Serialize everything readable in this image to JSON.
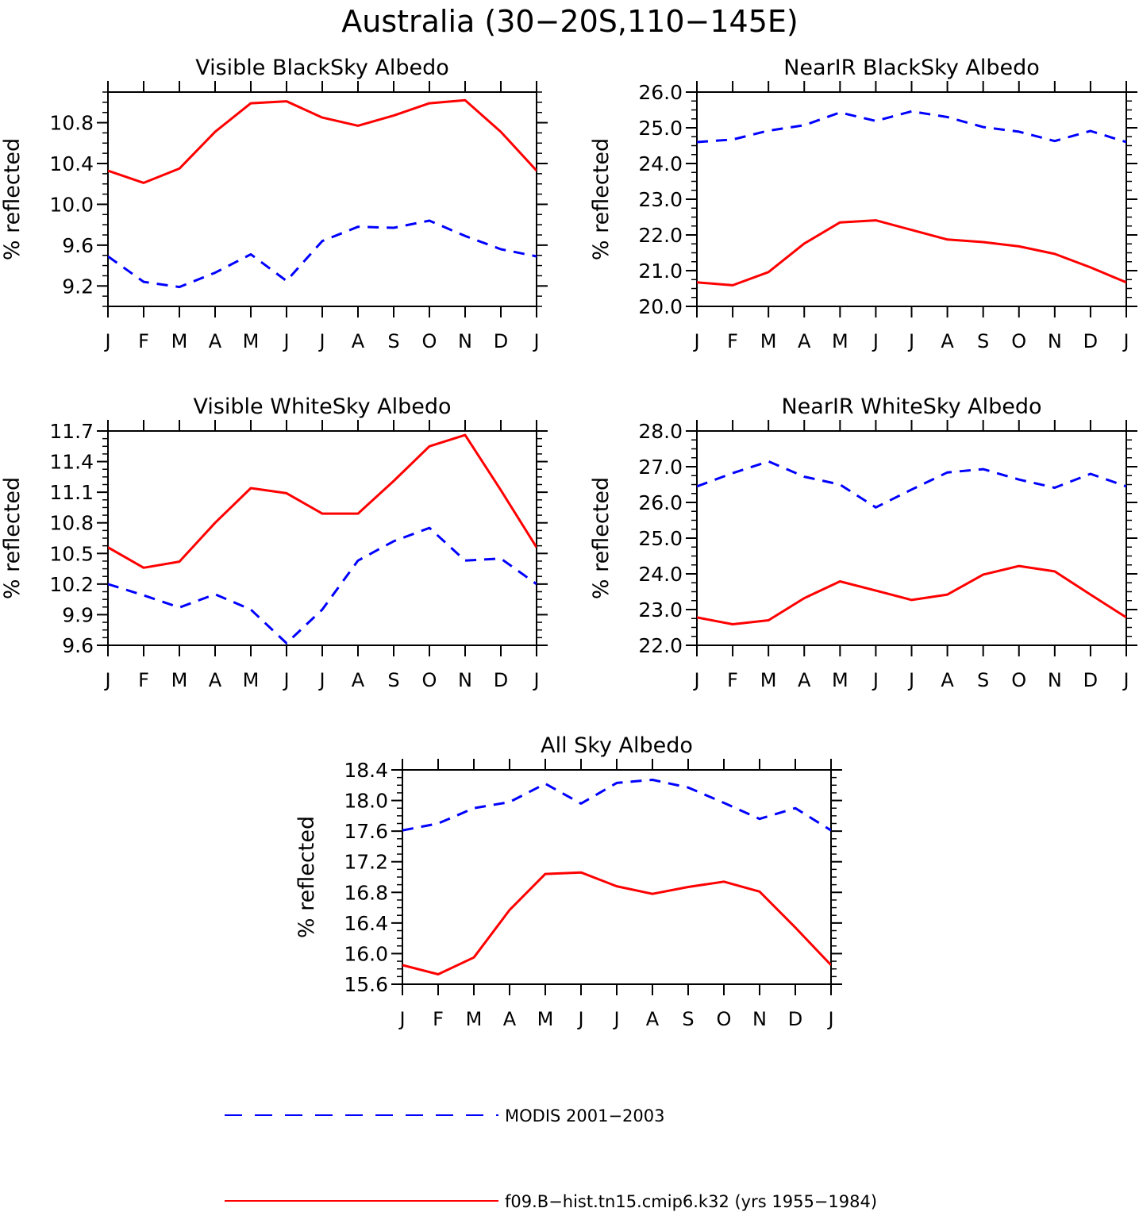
{
  "figure": {
    "title": "Australia (30−20S,110−145E)",
    "legend": [
      {
        "label": "MODIS 2001−2003",
        "color": "#0000ff",
        "style": "dashed"
      },
      {
        "label": "f09.B−hist.tn15.cmip6.k32 (yrs 1955−1984)",
        "color": "#ff0000",
        "style": "solid"
      }
    ]
  },
  "chart_data": [
    {
      "type": "line",
      "title": "Visible BlackSky Albedo",
      "ylabel": "% reflected",
      "categories": [
        "J",
        "F",
        "M",
        "A",
        "M",
        "J",
        "J",
        "A",
        "S",
        "O",
        "N",
        "D",
        "J"
      ],
      "ylim": [
        9.0,
        11.1
      ],
      "yticks": [
        "9.2",
        "9.6",
        "10.0",
        "10.4",
        "10.8"
      ],
      "grid": false,
      "series": [
        {
          "name": "MODIS 2001−2003",
          "color": "#0000ff",
          "dash": true,
          "values": [
            9.49,
            9.24,
            9.19,
            9.33,
            9.51,
            9.25,
            9.64,
            9.78,
            9.77,
            9.84,
            9.69,
            9.56,
            9.49
          ]
        },
        {
          "name": "f09.B−hist.tn15.cmip6.k32 (yrs 1955−1984)",
          "color": "#ff0000",
          "dash": false,
          "values": [
            10.33,
            10.21,
            10.35,
            10.71,
            10.99,
            11.01,
            10.85,
            10.77,
            10.87,
            10.99,
            11.02,
            10.71,
            10.33
          ]
        }
      ]
    },
    {
      "type": "line",
      "title": "NearIR BlackSky Albedo",
      "ylabel": "% reflected",
      "categories": [
        "J",
        "F",
        "M",
        "A",
        "M",
        "J",
        "J",
        "A",
        "S",
        "O",
        "N",
        "D",
        "J"
      ],
      "ylim": [
        20.0,
        26.0
      ],
      "yticks": [
        "20.0",
        "21.0",
        "22.0",
        "23.0",
        "24.0",
        "25.0",
        "26.0"
      ],
      "grid": false,
      "series": [
        {
          "name": "MODIS 2001−2003",
          "color": "#0000ff",
          "dash": true,
          "values": [
            24.6,
            24.67,
            24.92,
            25.07,
            25.43,
            25.19,
            25.46,
            25.3,
            25.02,
            24.89,
            24.63,
            24.91,
            24.6
          ]
        },
        {
          "name": "f09.B−hist.tn15.cmip6.k32 (yrs 1955−1984)",
          "color": "#ff0000",
          "dash": false,
          "values": [
            20.67,
            20.59,
            20.96,
            21.76,
            22.35,
            22.41,
            22.14,
            21.87,
            21.8,
            21.68,
            21.47,
            21.09,
            20.67
          ]
        }
      ]
    },
    {
      "type": "line",
      "title": "Visible WhiteSky Albedo",
      "ylabel": "% reflected",
      "categories": [
        "J",
        "F",
        "M",
        "A",
        "M",
        "J",
        "J",
        "A",
        "S",
        "O",
        "N",
        "D",
        "J"
      ],
      "ylim": [
        9.6,
        11.7
      ],
      "yticks": [
        "9.6",
        "9.9",
        "10.2",
        "10.5",
        "10.8",
        "11.1",
        "11.4",
        "11.7"
      ],
      "grid": false,
      "series": [
        {
          "name": "MODIS 2001−2003",
          "color": "#0000ff",
          "dash": true,
          "values": [
            10.2,
            10.09,
            9.97,
            10.1,
            9.95,
            9.62,
            9.95,
            10.43,
            10.62,
            10.75,
            10.43,
            10.45,
            10.2
          ]
        },
        {
          "name": "f09.B−hist.tn15.cmip6.k32 (yrs 1955−1984)",
          "color": "#ff0000",
          "dash": false,
          "values": [
            10.56,
            10.36,
            10.42,
            10.8,
            11.14,
            11.09,
            10.89,
            10.89,
            11.21,
            11.55,
            11.66,
            11.12,
            10.56
          ]
        }
      ]
    },
    {
      "type": "line",
      "title": "NearIR WhiteSky Albedo",
      "ylabel": "% reflected",
      "categories": [
        "J",
        "F",
        "M",
        "A",
        "M",
        "J",
        "J",
        "A",
        "S",
        "O",
        "N",
        "D",
        "J"
      ],
      "ylim": [
        22.0,
        28.0
      ],
      "yticks": [
        "22.0",
        "23.0",
        "24.0",
        "25.0",
        "26.0",
        "27.0",
        "28.0"
      ],
      "grid": false,
      "series": [
        {
          "name": "MODIS 2001−2003",
          "color": "#0000ff",
          "dash": true,
          "values": [
            26.45,
            26.82,
            27.15,
            26.72,
            26.5,
            25.86,
            26.36,
            26.84,
            26.93,
            26.64,
            26.41,
            26.8,
            26.45
          ]
        },
        {
          "name": "f09.B−hist.tn15.cmip6.k32 (yrs 1955−1984)",
          "color": "#ff0000",
          "dash": false,
          "values": [
            22.78,
            22.59,
            22.7,
            23.32,
            23.79,
            23.53,
            23.27,
            23.42,
            23.98,
            24.22,
            24.07,
            23.42,
            22.78
          ]
        }
      ]
    },
    {
      "type": "line",
      "title": "All Sky Albedo",
      "ylabel": "% reflected",
      "categories": [
        "J",
        "F",
        "M",
        "A",
        "M",
        "J",
        "J",
        "A",
        "S",
        "O",
        "N",
        "D",
        "J"
      ],
      "ylim": [
        15.6,
        18.4
      ],
      "yticks": [
        "15.6",
        "16.0",
        "16.4",
        "16.8",
        "17.2",
        "17.6",
        "18.0",
        "18.4"
      ],
      "grid": false,
      "series": [
        {
          "name": "MODIS 2001−2003",
          "color": "#0000ff",
          "dash": true,
          "values": [
            17.61,
            17.7,
            17.9,
            17.98,
            18.22,
            17.96,
            18.23,
            18.27,
            18.17,
            17.97,
            17.76,
            17.9,
            17.61
          ]
        },
        {
          "name": "f09.B−hist.tn15.cmip6.k32 (yrs 1955−1984)",
          "color": "#ff0000",
          "dash": false,
          "values": [
            15.85,
            15.73,
            15.95,
            16.57,
            17.04,
            17.06,
            16.88,
            16.78,
            16.87,
            16.94,
            16.81,
            16.34,
            15.85
          ]
        }
      ]
    }
  ]
}
